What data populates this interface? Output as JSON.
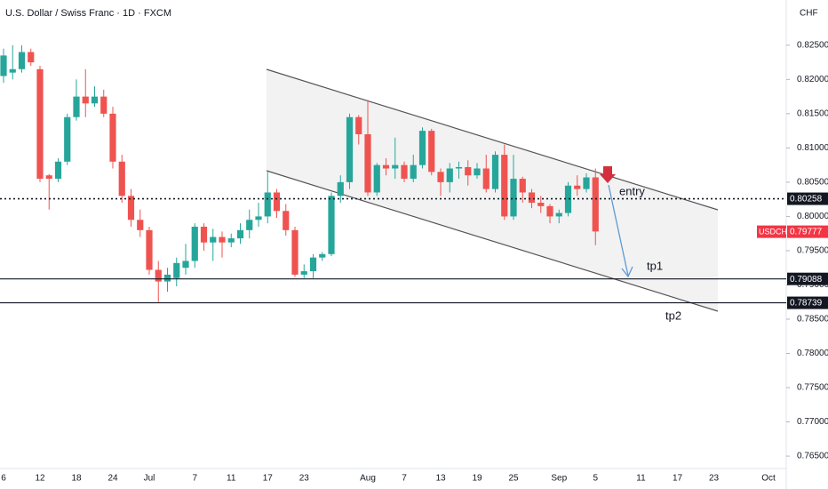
{
  "chart_data": {
    "type": "candlestick",
    "title": "U.S. Dollar / Swiss Franc · 1D · FXCM",
    "currency_label": "CHF",
    "up_color": "#26a69a",
    "down_color": "#ef5350",
    "grid": false,
    "categories": [
      "6",
      null,
      null,
      null,
      "12",
      null,
      null,
      null,
      "18",
      null,
      null,
      null,
      "24",
      null,
      null,
      null,
      "Jul",
      null,
      null,
      null,
      null,
      "7",
      null,
      null,
      null,
      "11",
      null,
      null,
      null,
      "17",
      null,
      null,
      null,
      "23",
      null,
      null,
      null,
      null,
      null,
      null,
      "Aug",
      null,
      null,
      null,
      "7",
      null,
      null,
      null,
      "13",
      null,
      null,
      null,
      "19",
      null,
      null,
      null,
      "25",
      null,
      null,
      null,
      null,
      "Sep",
      null,
      null,
      null,
      "5",
      null,
      null,
      null,
      null,
      "11",
      null,
      null,
      null,
      "17",
      null,
      null,
      null,
      "23",
      null,
      null,
      null,
      null,
      null,
      "Oct"
    ],
    "open": [
      0.8205,
      0.821,
      0.8215,
      0.824,
      0.8215,
      0.806,
      0.8055,
      0.808,
      0.8145,
      0.8175,
      0.8165,
      0.8175,
      0.815,
      0.808,
      0.803,
      0.7995,
      0.798,
      0.7922,
      0.7905,
      0.791,
      0.7925,
      0.7935,
      0.7985,
      0.7962,
      0.797,
      0.7962,
      0.7968,
      0.798,
      0.7995,
      0.8,
      0.8035,
      0.8008,
      0.798,
      0.7915,
      0.792,
      0.794,
      0.7945,
      0.803,
      0.805,
      0.8145,
      0.812,
      0.8035,
      0.8075,
      0.807,
      0.8075,
      0.8055,
      0.8075,
      0.8125,
      0.8065,
      0.805,
      0.807,
      0.8072,
      0.806,
      0.807,
      0.804,
      0.809,
      0.8,
      0.8055,
      0.8035,
      0.802,
      0.8015,
      0.8,
      0.8005,
      0.8045,
      0.804,
      0.8057,
      null,
      null,
      null,
      null,
      null,
      null,
      null,
      null,
      null,
      null,
      null,
      null,
      null,
      null,
      null,
      null,
      null,
      null,
      null
    ],
    "high": [
      0.8245,
      0.825,
      0.825,
      0.8245,
      0.822,
      0.8062,
      0.8085,
      0.815,
      0.82,
      0.8215,
      0.819,
      0.8185,
      0.816,
      0.809,
      0.804,
      0.801,
      0.7985,
      0.7935,
      0.7925,
      0.794,
      0.796,
      0.799,
      0.799,
      0.7982,
      0.7978,
      0.7975,
      0.799,
      0.801,
      0.802,
      0.8065,
      0.804,
      0.8018,
      0.7985,
      0.793,
      0.7945,
      0.7948,
      0.8035,
      0.806,
      0.815,
      0.8148,
      0.817,
      0.8078,
      0.8085,
      0.8115,
      0.808,
      0.809,
      0.813,
      0.8128,
      0.807,
      0.8078,
      0.808,
      0.8082,
      0.8078,
      0.809,
      0.8095,
      0.8105,
      0.809,
      0.8058,
      0.804,
      0.803,
      0.8018,
      0.801,
      0.805,
      0.806,
      0.8063,
      0.807,
      null,
      null,
      null,
      null,
      null,
      null,
      null,
      null,
      null,
      null,
      null,
      null,
      null,
      null,
      null,
      null,
      null,
      null,
      null
    ],
    "low": [
      0.8195,
      0.82,
      0.821,
      0.822,
      0.805,
      0.801,
      0.805,
      0.8075,
      0.814,
      0.8145,
      0.816,
      0.8145,
      0.807,
      0.802,
      0.7985,
      0.797,
      0.7915,
      0.7875,
      0.789,
      0.7898,
      0.7915,
      0.7925,
      0.795,
      0.7935,
      0.794,
      0.7955,
      0.796,
      0.7968,
      0.7985,
      0.799,
      0.7998,
      0.7972,
      0.7912,
      0.791,
      0.791,
      0.7935,
      0.7942,
      0.802,
      0.804,
      0.8105,
      0.803,
      0.803,
      0.806,
      0.8055,
      0.805,
      0.805,
      0.807,
      0.806,
      0.803,
      0.8035,
      0.8055,
      0.8045,
      0.8055,
      0.8035,
      0.8035,
      0.7995,
      0.7995,
      0.802,
      0.8012,
      0.8005,
      0.799,
      0.799,
      0.8,
      0.803,
      0.8035,
      0.7958,
      null,
      null,
      null,
      null,
      null,
      null,
      null,
      null,
      null,
      null,
      null,
      null,
      null,
      null,
      null,
      null,
      null,
      null,
      null
    ],
    "close": [
      0.8235,
      0.8215,
      0.824,
      0.8225,
      0.8055,
      0.8055,
      0.808,
      0.8145,
      0.8175,
      0.8165,
      0.8175,
      0.815,
      0.808,
      0.803,
      0.7995,
      0.798,
      0.7922,
      0.7905,
      0.7915,
      0.7932,
      0.7935,
      0.7985,
      0.7962,
      0.797,
      0.7962,
      0.7968,
      0.798,
      0.7995,
      0.8,
      0.8035,
      0.8008,
      0.798,
      0.7915,
      0.792,
      0.794,
      0.7945,
      0.803,
      0.805,
      0.8145,
      0.812,
      0.8035,
      0.8075,
      0.807,
      0.8075,
      0.8055,
      0.8075,
      0.8125,
      0.8065,
      0.805,
      0.807,
      0.8072,
      0.806,
      0.807,
      0.804,
      0.809,
      0.8,
      0.8055,
      0.8035,
      0.802,
      0.8015,
      0.8,
      0.8005,
      0.8045,
      0.804,
      0.8057,
      0.7978,
      null,
      null,
      null,
      null,
      null,
      null,
      null,
      null,
      null,
      null,
      null,
      null,
      null,
      null,
      null,
      null,
      null,
      null,
      null
    ],
    "ylim": [
      0.7628,
      0.8316
    ],
    "yticks": [
      {
        "value": 0.765,
        "label": "0.76500"
      },
      {
        "value": 0.77,
        "label": "0.77000"
      },
      {
        "value": 0.775,
        "label": "0.77500"
      },
      {
        "value": 0.78,
        "label": "0.78000"
      },
      {
        "value": 0.785,
        "label": "0.78500"
      },
      {
        "value": 0.79,
        "label": "0.79000"
      },
      {
        "value": 0.795,
        "label": "0.79500"
      },
      {
        "value": 0.8,
        "label": "0.80000"
      },
      {
        "value": 0.805,
        "label": "0.80500"
      },
      {
        "value": 0.81,
        "label": "0.81000"
      },
      {
        "value": 0.815,
        "label": "0.81500"
      },
      {
        "value": 0.82,
        "label": "0.82000"
      },
      {
        "value": 0.825,
        "label": "0.82500"
      }
    ],
    "levels": [
      {
        "value": 0.80258,
        "style": "dotted"
      },
      {
        "value": 0.79088,
        "style": "solid"
      },
      {
        "value": 0.78739,
        "style": "solid"
      }
    ],
    "last_price": {
      "name": "USDCHF",
      "value": 0.79777,
      "color": "#f23645"
    },
    "annotations": [
      "entry",
      "tp1",
      "tp2"
    ]
  }
}
